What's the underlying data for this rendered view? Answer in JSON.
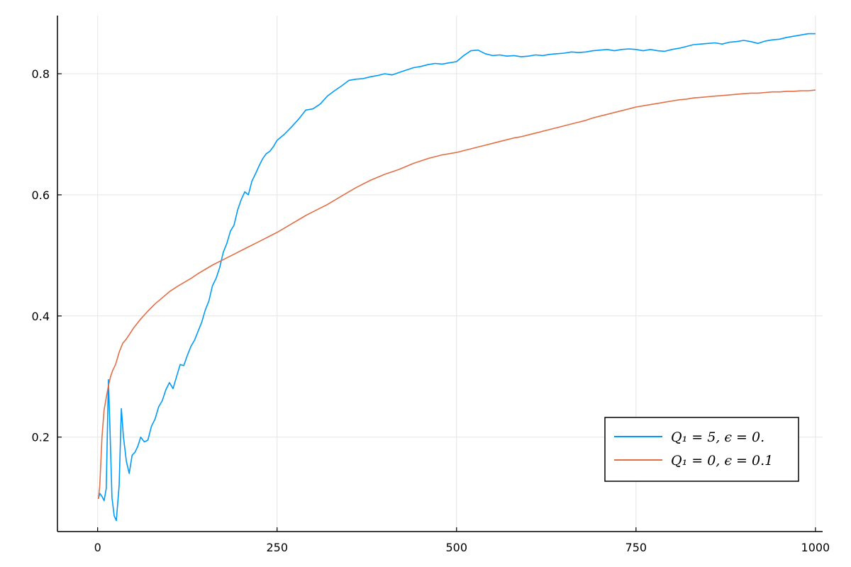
{
  "chart_data": {
    "type": "line",
    "title": "",
    "xlabel": "",
    "ylabel": "",
    "xlim": [
      -56,
      1010
    ],
    "ylim": [
      0.044,
      0.896
    ],
    "xticks": [
      0,
      250,
      500,
      750,
      1000
    ],
    "xtick_labels": [
      "0",
      "250",
      "500",
      "750",
      "1000"
    ],
    "yticks": [
      0.2,
      0.4,
      0.6,
      0.8
    ],
    "ytick_labels": [
      "0.2",
      "0.4",
      "0.6",
      "0.8"
    ],
    "grid": true,
    "legend_position": "bottom-right",
    "series": [
      {
        "name": "Q_1 = 5, ε = 0.",
        "legend_label": "Q₁ = 5, ϵ = 0.",
        "color": "#009af9",
        "x": [
          1,
          3,
          6,
          9,
          12,
          15,
          17,
          20,
          23,
          26,
          30,
          33,
          36,
          40,
          44,
          48,
          52,
          56,
          60,
          65,
          70,
          75,
          80,
          85,
          90,
          95,
          100,
          105,
          110,
          115,
          120,
          125,
          130,
          135,
          140,
          145,
          150,
          155,
          160,
          165,
          170,
          175,
          180,
          185,
          190,
          195,
          200,
          205,
          210,
          215,
          220,
          225,
          230,
          235,
          240,
          245,
          250,
          260,
          270,
          280,
          290,
          300,
          310,
          320,
          330,
          340,
          350,
          360,
          370,
          380,
          390,
          400,
          410,
          420,
          430,
          440,
          450,
          460,
          470,
          480,
          490,
          500,
          510,
          520,
          530,
          540,
          550,
          560,
          570,
          580,
          590,
          600,
          610,
          620,
          630,
          640,
          650,
          660,
          670,
          680,
          690,
          700,
          710,
          720,
          730,
          740,
          750,
          760,
          770,
          780,
          790,
          800,
          810,
          820,
          830,
          840,
          850,
          860,
          870,
          880,
          890,
          900,
          910,
          920,
          930,
          940,
          950,
          960,
          970,
          980,
          990,
          1000
        ],
        "values": [
          0.098,
          0.107,
          0.102,
          0.095,
          0.115,
          0.295,
          0.22,
          0.1,
          0.07,
          0.062,
          0.12,
          0.247,
          0.2,
          0.16,
          0.14,
          0.17,
          0.175,
          0.185,
          0.2,
          0.192,
          0.195,
          0.218,
          0.23,
          0.25,
          0.26,
          0.278,
          0.29,
          0.28,
          0.3,
          0.32,
          0.318,
          0.335,
          0.35,
          0.36,
          0.375,
          0.39,
          0.41,
          0.425,
          0.45,
          0.462,
          0.48,
          0.505,
          0.52,
          0.54,
          0.55,
          0.575,
          0.592,
          0.605,
          0.6,
          0.623,
          0.635,
          0.648,
          0.66,
          0.668,
          0.672,
          0.68,
          0.69,
          0.7,
          0.712,
          0.725,
          0.74,
          0.742,
          0.75,
          0.763,
          0.772,
          0.78,
          0.789,
          0.791,
          0.792,
          0.795,
          0.797,
          0.8,
          0.798,
          0.802,
          0.806,
          0.81,
          0.812,
          0.815,
          0.817,
          0.816,
          0.818,
          0.82,
          0.83,
          0.838,
          0.839,
          0.833,
          0.83,
          0.831,
          0.829,
          0.83,
          0.828,
          0.829,
          0.831,
          0.83,
          0.832,
          0.833,
          0.834,
          0.836,
          0.835,
          0.836,
          0.838,
          0.839,
          0.84,
          0.838,
          0.84,
          0.841,
          0.84,
          0.838,
          0.84,
          0.838,
          0.837,
          0.84,
          0.842,
          0.845,
          0.848,
          0.849,
          0.85,
          0.851,
          0.849,
          0.852,
          0.853,
          0.855,
          0.853,
          0.85,
          0.854,
          0.856,
          0.857,
          0.86,
          0.862,
          0.864,
          0.866,
          0.866
        ]
      },
      {
        "name": "Q_1 = 0, ε = 0.1",
        "legend_label": "Q₁ = 0, ϵ = 0.1",
        "color": "#e26f46",
        "x": [
          1,
          3,
          6,
          9,
          12,
          15,
          18,
          21,
          25,
          30,
          35,
          40,
          50,
          60,
          70,
          80,
          90,
          100,
          110,
          120,
          130,
          140,
          150,
          160,
          170,
          180,
          190,
          200,
          210,
          220,
          230,
          240,
          250,
          260,
          270,
          280,
          290,
          300,
          310,
          320,
          330,
          340,
          350,
          360,
          370,
          380,
          390,
          400,
          410,
          420,
          430,
          440,
          450,
          460,
          470,
          480,
          490,
          500,
          510,
          520,
          530,
          540,
          550,
          560,
          570,
          580,
          590,
          600,
          610,
          620,
          630,
          640,
          650,
          660,
          670,
          680,
          690,
          700,
          710,
          720,
          730,
          740,
          750,
          760,
          770,
          780,
          790,
          800,
          810,
          820,
          830,
          840,
          850,
          860,
          870,
          880,
          890,
          900,
          910,
          920,
          930,
          940,
          950,
          960,
          970,
          980,
          990,
          1000
        ],
        "values": [
          0.098,
          0.12,
          0.2,
          0.245,
          0.265,
          0.285,
          0.3,
          0.31,
          0.32,
          0.34,
          0.355,
          0.362,
          0.38,
          0.395,
          0.408,
          0.42,
          0.43,
          0.44,
          0.448,
          0.455,
          0.462,
          0.47,
          0.477,
          0.484,
          0.49,
          0.496,
          0.502,
          0.508,
          0.514,
          0.52,
          0.526,
          0.532,
          0.538,
          0.545,
          0.552,
          0.559,
          0.566,
          0.572,
          0.578,
          0.584,
          0.591,
          0.598,
          0.605,
          0.612,
          0.618,
          0.624,
          0.629,
          0.634,
          0.638,
          0.642,
          0.647,
          0.652,
          0.656,
          0.66,
          0.663,
          0.666,
          0.668,
          0.67,
          0.673,
          0.676,
          0.679,
          0.682,
          0.685,
          0.688,
          0.691,
          0.694,
          0.696,
          0.699,
          0.702,
          0.705,
          0.708,
          0.711,
          0.714,
          0.717,
          0.72,
          0.723,
          0.727,
          0.73,
          0.733,
          0.736,
          0.739,
          0.742,
          0.745,
          0.747,
          0.749,
          0.751,
          0.753,
          0.755,
          0.757,
          0.758,
          0.76,
          0.761,
          0.762,
          0.763,
          0.764,
          0.765,
          0.766,
          0.767,
          0.768,
          0.768,
          0.769,
          0.77,
          0.77,
          0.771,
          0.771,
          0.772,
          0.772,
          0.773
        ]
      }
    ]
  }
}
